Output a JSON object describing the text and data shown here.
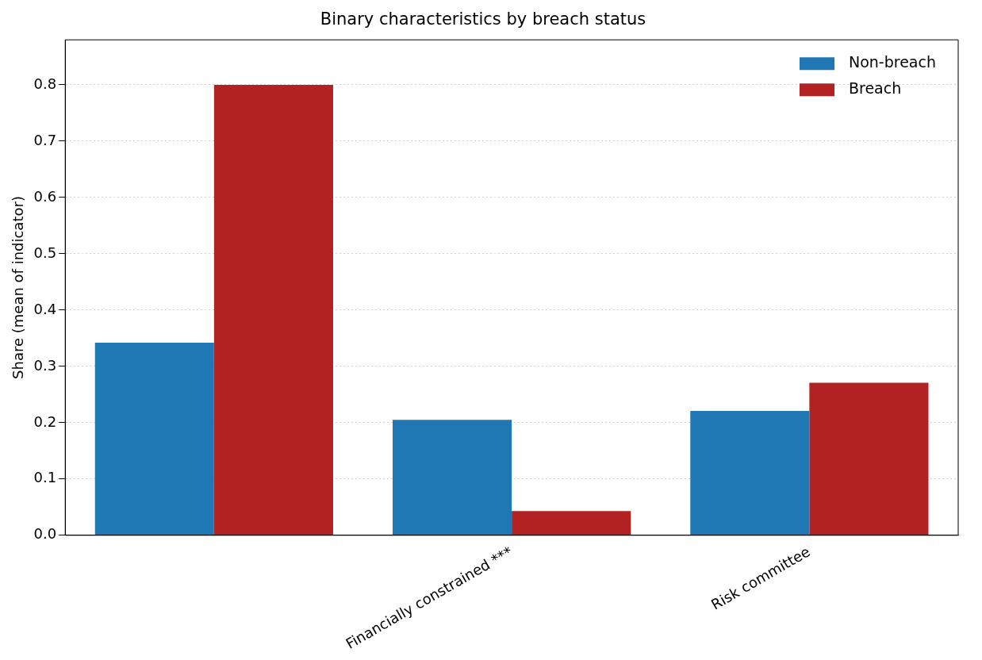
{
  "chart_data": {
    "type": "bar",
    "title": "Binary characteristics by breach status",
    "ylabel": "Share (mean of indicator)",
    "categories": [
      null,
      "Financially constrained ***",
      "Risk committee"
    ],
    "series": [
      {
        "name": "Non-breach",
        "color": "#1f77b4",
        "values": [
          0.342,
          0.205,
          0.221
        ]
      },
      {
        "name": "Breach",
        "color": "#b22222",
        "values": [
          0.8,
          0.043,
          0.271
        ]
      }
    ],
    "ylim": [
      0,
      0.88
    ],
    "yticks": [
      {
        "value": 0,
        "label": "0.0"
      },
      0.1,
      0.2,
      0.3,
      0.4,
      0.5,
      0.6,
      0.7,
      0.8
    ],
    "grid": "y",
    "legend": "top right"
  }
}
